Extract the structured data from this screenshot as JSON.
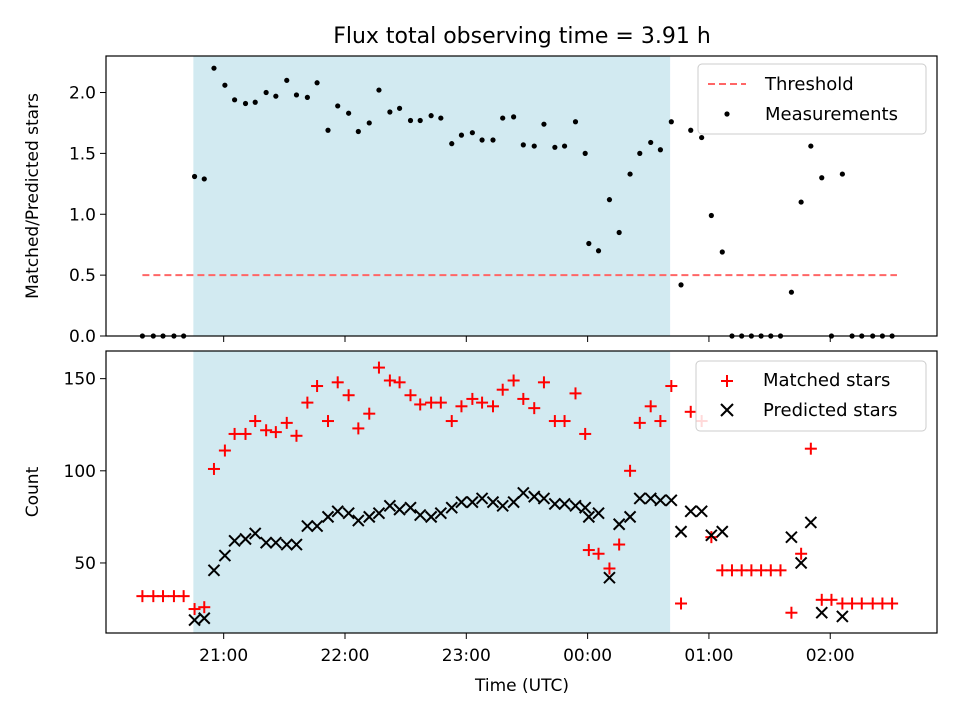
{
  "title": "Flux total observing time = 3.91 h",
  "xlabel": "Time (UTC)",
  "xticks": [
    {
      "t": 21.0,
      "label": "21:00"
    },
    {
      "t": 22.0,
      "label": "22:00"
    },
    {
      "t": 23.0,
      "label": "23:00"
    },
    {
      "t": 24.0,
      "label": "00:00"
    },
    {
      "t": 25.0,
      "label": "01:00"
    },
    {
      "t": 26.0,
      "label": "02:00"
    }
  ],
  "colors": {
    "shade": "#add8e6",
    "threshold": "#ff6666",
    "measurement": "#000000",
    "matched": "#ff0000",
    "predicted": "#000000"
  },
  "chart_data": [
    {
      "type": "scatter",
      "ylabel": "Matched/Predicted stars",
      "xlim": [
        20.03,
        26.88
      ],
      "ylim": [
        0,
        2.3
      ],
      "yticks": [
        {
          "v": 0.0,
          "label": "0.0"
        },
        {
          "v": 0.5,
          "label": "0.5"
        },
        {
          "v": 1.0,
          "label": "1.0"
        },
        {
          "v": 1.5,
          "label": "1.5"
        },
        {
          "v": 2.0,
          "label": "2.0"
        }
      ],
      "shaded_interval": [
        20.75,
        24.68
      ],
      "threshold": {
        "name": "Threshold",
        "value": 0.5,
        "x_range": [
          20.33,
          26.55
        ]
      },
      "legend": {
        "position": "top-right",
        "entries": [
          "Threshold",
          "Measurements"
        ]
      },
      "series": [
        {
          "name": "Measurements",
          "marker": "dot",
          "points": [
            [
              20.33,
              0.0
            ],
            [
              20.42,
              0.0
            ],
            [
              20.5,
              0.0
            ],
            [
              20.59,
              0.0
            ],
            [
              20.67,
              0.0
            ],
            [
              20.76,
              1.31
            ],
            [
              20.84,
              1.29
            ],
            [
              20.92,
              2.2
            ],
            [
              21.01,
              2.06
            ],
            [
              21.09,
              1.94
            ],
            [
              21.18,
              1.91
            ],
            [
              21.26,
              1.92
            ],
            [
              21.35,
              2.0
            ],
            [
              21.43,
              1.97
            ],
            [
              21.52,
              2.1
            ],
            [
              21.6,
              1.98
            ],
            [
              21.69,
              1.96
            ],
            [
              21.77,
              2.08
            ],
            [
              21.86,
              1.69
            ],
            [
              21.94,
              1.89
            ],
            [
              22.03,
              1.83
            ],
            [
              22.11,
              1.68
            ],
            [
              22.2,
              1.75
            ],
            [
              22.28,
              2.02
            ],
            [
              22.37,
              1.84
            ],
            [
              22.45,
              1.87
            ],
            [
              22.54,
              1.77
            ],
            [
              22.62,
              1.77
            ],
            [
              22.71,
              1.81
            ],
            [
              22.79,
              1.79
            ],
            [
              22.88,
              1.58
            ],
            [
              22.96,
              1.65
            ],
            [
              23.05,
              1.67
            ],
            [
              23.13,
              1.61
            ],
            [
              23.22,
              1.61
            ],
            [
              23.3,
              1.79
            ],
            [
              23.39,
              1.8
            ],
            [
              23.47,
              1.57
            ],
            [
              23.56,
              1.56
            ],
            [
              23.64,
              1.74
            ],
            [
              23.73,
              1.55
            ],
            [
              23.81,
              1.56
            ],
            [
              23.9,
              1.76
            ],
            [
              23.98,
              1.5
            ],
            [
              24.01,
              0.76
            ],
            [
              24.09,
              0.7
            ],
            [
              24.18,
              1.12
            ],
            [
              24.26,
              0.85
            ],
            [
              24.35,
              1.33
            ],
            [
              24.43,
              1.5
            ],
            [
              24.52,
              1.59
            ],
            [
              24.6,
              1.53
            ],
            [
              24.69,
              1.76
            ],
            [
              24.77,
              0.42
            ],
            [
              24.85,
              1.69
            ],
            [
              24.94,
              1.63
            ],
            [
              25.02,
              0.99
            ],
            [
              25.11,
              0.69
            ],
            [
              25.19,
              0.0
            ],
            [
              25.27,
              0.0
            ],
            [
              25.35,
              0.0
            ],
            [
              25.43,
              0.0
            ],
            [
              25.51,
              0.0
            ],
            [
              25.59,
              0.0
            ],
            [
              25.68,
              0.36
            ],
            [
              25.76,
              1.1
            ],
            [
              25.84,
              1.56
            ],
            [
              25.93,
              1.3
            ],
            [
              26.01,
              0.0
            ],
            [
              26.1,
              1.33
            ],
            [
              26.18,
              0.0
            ],
            [
              26.26,
              0.0
            ],
            [
              26.35,
              0.0
            ],
            [
              26.43,
              0.0
            ],
            [
              26.51,
              0.0
            ]
          ]
        }
      ]
    },
    {
      "type": "scatter",
      "ylabel": "Count",
      "xlim": [
        20.03,
        26.88
      ],
      "ylim": [
        12,
        165
      ],
      "yticks": [
        {
          "v": 50,
          "label": "50"
        },
        {
          "v": 100,
          "label": "100"
        },
        {
          "v": 150,
          "label": "150"
        }
      ],
      "shaded_interval": [
        20.75,
        24.68
      ],
      "legend": {
        "position": "top-right",
        "entries": [
          "Matched stars",
          "Predicted stars"
        ]
      },
      "series": [
        {
          "name": "Matched stars",
          "marker": "plus",
          "points": [
            [
              20.33,
              32
            ],
            [
              20.42,
              32
            ],
            [
              20.5,
              32
            ],
            [
              20.59,
              32
            ],
            [
              20.67,
              32
            ],
            [
              20.76,
              25
            ],
            [
              20.84,
              26
            ],
            [
              20.92,
              101
            ],
            [
              21.01,
              111
            ],
            [
              21.09,
              120
            ],
            [
              21.18,
              120
            ],
            [
              21.26,
              127
            ],
            [
              21.35,
              122
            ],
            [
              21.43,
              121
            ],
            [
              21.52,
              126
            ],
            [
              21.6,
              119
            ],
            [
              21.69,
              137
            ],
            [
              21.77,
              146
            ],
            [
              21.86,
              127
            ],
            [
              21.94,
              148
            ],
            [
              22.03,
              141
            ],
            [
              22.11,
              123
            ],
            [
              22.2,
              131
            ],
            [
              22.28,
              156
            ],
            [
              22.37,
              149
            ],
            [
              22.45,
              148
            ],
            [
              22.54,
              141
            ],
            [
              22.62,
              136
            ],
            [
              22.71,
              137
            ],
            [
              22.79,
              137
            ],
            [
              22.88,
              127
            ],
            [
              22.96,
              135
            ],
            [
              23.05,
              139
            ],
            [
              23.13,
              137
            ],
            [
              23.22,
              135
            ],
            [
              23.3,
              144
            ],
            [
              23.39,
              149
            ],
            [
              23.47,
              139
            ],
            [
              23.56,
              134
            ],
            [
              23.64,
              148
            ],
            [
              23.73,
              127
            ],
            [
              23.81,
              127
            ],
            [
              23.9,
              142
            ],
            [
              23.98,
              120
            ],
            [
              24.01,
              57
            ],
            [
              24.09,
              55
            ],
            [
              24.18,
              47
            ],
            [
              24.26,
              60
            ],
            [
              24.35,
              100
            ],
            [
              24.43,
              126
            ],
            [
              24.52,
              135
            ],
            [
              24.6,
              127
            ],
            [
              24.69,
              146
            ],
            [
              24.77,
              28
            ],
            [
              24.85,
              132
            ],
            [
              24.94,
              127
            ],
            [
              25.02,
              64
            ],
            [
              25.11,
              46
            ],
            [
              25.19,
              46
            ],
            [
              25.27,
              46
            ],
            [
              25.35,
              46
            ],
            [
              25.43,
              46
            ],
            [
              25.51,
              46
            ],
            [
              25.59,
              46
            ],
            [
              25.68,
              23
            ],
            [
              25.76,
              55
            ],
            [
              25.84,
              112
            ],
            [
              25.93,
              30
            ],
            [
              26.01,
              30
            ],
            [
              26.1,
              28
            ],
            [
              26.18,
              28
            ],
            [
              26.26,
              28
            ],
            [
              26.35,
              28
            ],
            [
              26.43,
              28
            ],
            [
              26.51,
              28
            ]
          ]
        },
        {
          "name": "Predicted stars",
          "marker": "x",
          "points": [
            [
              20.76,
              19
            ],
            [
              20.84,
              20
            ],
            [
              20.92,
              46
            ],
            [
              21.01,
              54
            ],
            [
              21.09,
              62
            ],
            [
              21.18,
              63
            ],
            [
              21.26,
              66
            ],
            [
              21.35,
              61
            ],
            [
              21.43,
              61
            ],
            [
              21.52,
              60
            ],
            [
              21.6,
              60
            ],
            [
              21.69,
              70
            ],
            [
              21.77,
              70
            ],
            [
              21.86,
              75
            ],
            [
              21.94,
              78
            ],
            [
              22.03,
              77
            ],
            [
              22.11,
              73
            ],
            [
              22.2,
              75
            ],
            [
              22.28,
              77
            ],
            [
              22.37,
              81
            ],
            [
              22.45,
              79
            ],
            [
              22.54,
              80
            ],
            [
              22.62,
              76
            ],
            [
              22.71,
              75
            ],
            [
              22.79,
              77
            ],
            [
              22.88,
              80
            ],
            [
              22.96,
              83
            ],
            [
              23.05,
              83
            ],
            [
              23.13,
              85
            ],
            [
              23.22,
              83
            ],
            [
              23.3,
              81
            ],
            [
              23.39,
              83
            ],
            [
              23.47,
              88
            ],
            [
              23.56,
              86
            ],
            [
              23.64,
              85
            ],
            [
              23.73,
              82
            ],
            [
              23.81,
              82
            ],
            [
              23.9,
              81
            ],
            [
              23.98,
              80
            ],
            [
              24.01,
              75
            ],
            [
              24.09,
              77
            ],
            [
              24.18,
              42
            ],
            [
              24.26,
              71
            ],
            [
              24.35,
              75
            ],
            [
              24.43,
              85
            ],
            [
              24.52,
              85
            ],
            [
              24.6,
              84
            ],
            [
              24.69,
              84
            ],
            [
              24.77,
              67
            ],
            [
              24.85,
              78
            ],
            [
              24.94,
              78
            ],
            [
              25.02,
              65
            ],
            [
              25.11,
              67
            ],
            [
              25.68,
              64
            ],
            [
              25.76,
              50
            ],
            [
              25.84,
              72
            ],
            [
              25.93,
              23
            ],
            [
              26.1,
              21
            ]
          ]
        }
      ]
    }
  ]
}
